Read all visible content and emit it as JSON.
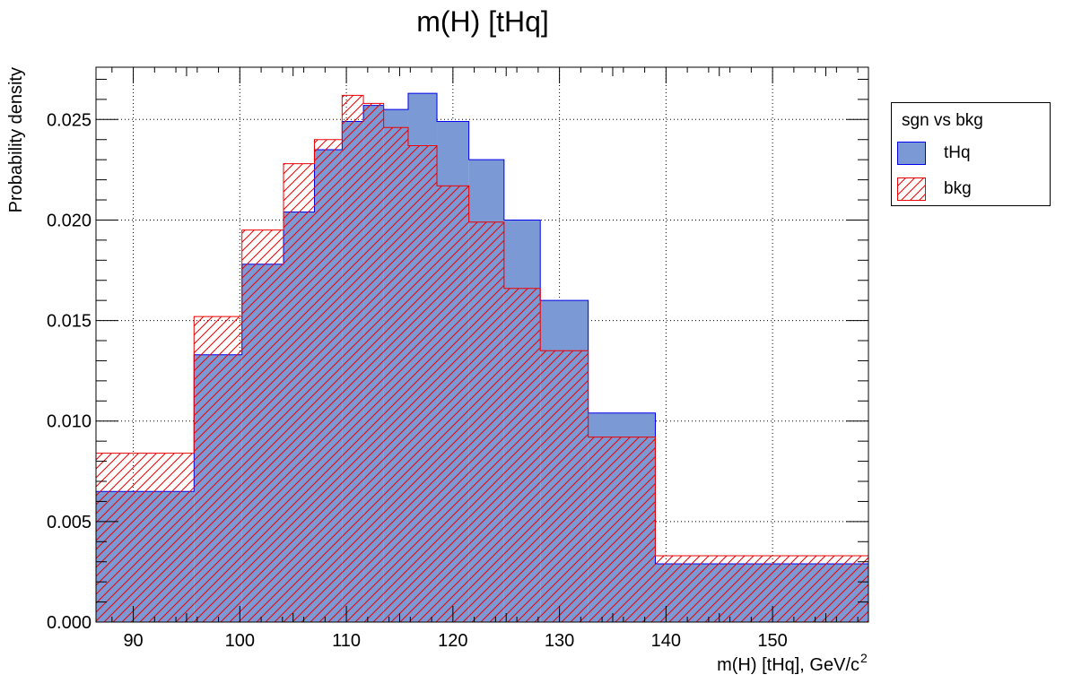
{
  "chart_data": {
    "type": "histogram",
    "title": "m(H) [tHq]",
    "xlabel": "m(H) [tHq], GeV/c",
    "xlabel_superscript": "2",
    "ylabel": "Probability density",
    "xlim": [
      86.5,
      159
    ],
    "ylim": [
      0,
      0.0276
    ],
    "x_ticks": [
      "90",
      "100",
      "110",
      "120",
      "130",
      "140",
      "150"
    ],
    "y_ticks": [
      "0.000",
      "0.005",
      "0.010",
      "0.015",
      "0.020",
      "0.025"
    ],
    "grid": true,
    "legend": {
      "header": "sgn vs bkg",
      "placement": "right"
    },
    "bin_edges": [
      86.5,
      95.7,
      100.2,
      104.1,
      107.0,
      109.6,
      111.6,
      113.5,
      115.8,
      118.5,
      121.5,
      124.8,
      128.2,
      132.7,
      139.0,
      159.0
    ],
    "series": [
      {
        "name": "tHq",
        "style": "filled",
        "color": "#7b99d4",
        "edge": "#0000ee",
        "values": [
          0.0065,
          0.0133,
          0.0178,
          0.0204,
          0.0235,
          0.0249,
          0.0257,
          0.0255,
          0.0263,
          0.0249,
          0.023,
          0.02,
          0.016,
          0.0104,
          0.0029
        ]
      },
      {
        "name": "bkg",
        "style": "hatched",
        "color": "#ee0000",
        "edge": "#ee0000",
        "values": [
          0.0084,
          0.0152,
          0.0195,
          0.0228,
          0.024,
          0.0262,
          0.0258,
          0.0246,
          0.0237,
          0.0217,
          0.0199,
          0.0166,
          0.0135,
          0.0092,
          0.0033
        ]
      }
    ]
  }
}
